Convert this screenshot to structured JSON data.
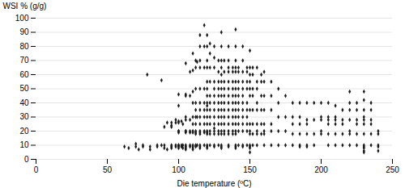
{
  "chart_data": {
    "type": "scatter",
    "xlabel": "Die temperature (ºC)",
    "ylabel": "WSI % (g/g)",
    "xlim": [
      0,
      250
    ],
    "ylim": [
      0,
      100
    ],
    "xticks": [
      0,
      50,
      100,
      150,
      200,
      250
    ],
    "yticks": [
      0,
      10,
      20,
      30,
      40,
      50,
      60,
      70,
      80,
      90,
      100
    ],
    "marker": "diamond",
    "color": "#1a1a1a",
    "grid": "y",
    "x": [
      62,
      65,
      70,
      70,
      72,
      75,
      75,
      78,
      80,
      80,
      85,
      85,
      88,
      88,
      90,
      90,
      90,
      92,
      92,
      95,
      95,
      95,
      95,
      95,
      95,
      98,
      98,
      98,
      98,
      100,
      100,
      100,
      100,
      100,
      100,
      100,
      100,
      100,
      100,
      100,
      102,
      102,
      102,
      103,
      103,
      103,
      105,
      105,
      105,
      105,
      105,
      105,
      105,
      105,
      105,
      105,
      105,
      105,
      108,
      108,
      108,
      108,
      108,
      108,
      108,
      110,
      110,
      110,
      110,
      110,
      110,
      110,
      110,
      110,
      110,
      110,
      110,
      112,
      112,
      112,
      112,
      112,
      112,
      112,
      112,
      112,
      112,
      112,
      112,
      113,
      113,
      113,
      115,
      115,
      115,
      115,
      115,
      115,
      115,
      115,
      115,
      115,
      115,
      115,
      115,
      115,
      115,
      118,
      118,
      118,
      118,
      118,
      118,
      118,
      118,
      118,
      118,
      118,
      120,
      120,
      120,
      120,
      120,
      120,
      120,
      120,
      120,
      120,
      120,
      120,
      120,
      120,
      120,
      120,
      120,
      120,
      122,
      122,
      122,
      122,
      122,
      122,
      122,
      122,
      122,
      122,
      122,
      122,
      125,
      125,
      125,
      125,
      125,
      125,
      125,
      125,
      125,
      125,
      125,
      125,
      125,
      125,
      125,
      128,
      128,
      128,
      128,
      128,
      128,
      128,
      128,
      128,
      128,
      128,
      128,
      130,
      130,
      130,
      130,
      130,
      130,
      130,
      130,
      130,
      130,
      130,
      130,
      130,
      130,
      130,
      130,
      130,
      132,
      132,
      132,
      132,
      132,
      132,
      132,
      132,
      132,
      132,
      132,
      135,
      135,
      135,
      135,
      135,
      135,
      135,
      135,
      135,
      135,
      135,
      135,
      135,
      135,
      135,
      138,
      138,
      138,
      138,
      138,
      138,
      138,
      138,
      138,
      138,
      138,
      140,
      140,
      140,
      140,
      140,
      140,
      140,
      140,
      140,
      140,
      140,
      140,
      140,
      140,
      140,
      140,
      140,
      142,
      142,
      142,
      142,
      142,
      142,
      142,
      142,
      142,
      142,
      142,
      145,
      145,
      145,
      145,
      145,
      145,
      145,
      145,
      145,
      145,
      145,
      145,
      145,
      148,
      148,
      148,
      148,
      148,
      148,
      148,
      148,
      148,
      148,
      150,
      150,
      150,
      150,
      150,
      150,
      150,
      150,
      150,
      150,
      150,
      150,
      150,
      150,
      152,
      152,
      152,
      152,
      152,
      152,
      152,
      152,
      155,
      155,
      155,
      155,
      155,
      155,
      155,
      155,
      155,
      158,
      158,
      158,
      158,
      158,
      158,
      160,
      160,
      160,
      160,
      160,
      160,
      160,
      160,
      165,
      165,
      165,
      165,
      165,
      165,
      170,
      170,
      170,
      170,
      170,
      175,
      175,
      175,
      175,
      180,
      180,
      180,
      180,
      180,
      185,
      185,
      185,
      185,
      185,
      185,
      190,
      190,
      190,
      190,
      190,
      190,
      195,
      195,
      195,
      195,
      200,
      200,
      200,
      200,
      200,
      205,
      205,
      205,
      205,
      205,
      205,
      210,
      210,
      210,
      210,
      210,
      210,
      215,
      215,
      215,
      215,
      215,
      220,
      220,
      220,
      220,
      220,
      220,
      220,
      225,
      225,
      225,
      225,
      225,
      225,
      230,
      230,
      230,
      230,
      230,
      230,
      230,
      230,
      230,
      230,
      230,
      230,
      235,
      235,
      235,
      235,
      235,
      235,
      240,
      240,
      240,
      240,
      240
    ],
    "y": [
      9,
      8,
      11,
      9,
      7,
      10,
      9,
      60,
      9,
      7,
      10,
      9,
      56,
      10,
      8,
      23,
      10,
      26,
      7,
      24,
      26,
      9,
      8,
      23,
      10,
      28,
      26,
      10,
      9,
      27,
      26,
      20,
      19,
      10,
      9,
      8,
      46,
      20,
      10,
      38,
      27,
      10,
      9,
      25,
      10,
      8,
      68,
      45,
      30,
      28,
      20,
      19,
      10,
      9,
      8,
      7,
      46,
      20,
      62,
      45,
      28,
      20,
      19,
      10,
      9,
      75,
      63,
      48,
      40,
      30,
      25,
      20,
      19,
      10,
      9,
      8,
      7,
      70,
      65,
      50,
      40,
      35,
      30,
      25,
      20,
      19,
      18,
      10,
      9,
      69,
      30,
      10,
      88,
      80,
      70,
      65,
      50,
      40,
      35,
      30,
      25,
      20,
      19,
      18,
      10,
      9,
      8,
      95,
      80,
      65,
      50,
      40,
      35,
      30,
      25,
      20,
      19,
      10,
      88,
      80,
      70,
      65,
      55,
      50,
      45,
      40,
      38,
      35,
      30,
      25,
      20,
      19,
      18,
      10,
      9,
      8,
      82,
      75,
      65,
      55,
      45,
      40,
      35,
      30,
      25,
      20,
      18,
      10,
      80,
      72,
      65,
      55,
      50,
      45,
      40,
      35,
      30,
      25,
      22,
      20,
      18,
      10,
      9,
      70,
      62,
      55,
      50,
      45,
      40,
      35,
      30,
      25,
      20,
      18,
      10,
      90,
      80,
      70,
      65,
      60,
      55,
      50,
      45,
      40,
      35,
      30,
      25,
      20,
      18,
      10,
      9,
      8,
      70,
      62,
      55,
      50,
      45,
      40,
      35,
      30,
      25,
      20,
      18,
      80,
      70,
      65,
      62,
      55,
      50,
      45,
      40,
      35,
      30,
      25,
      20,
      18,
      10,
      9,
      65,
      62,
      55,
      50,
      45,
      40,
      35,
      30,
      25,
      20,
      18,
      92,
      80,
      70,
      65,
      62,
      55,
      50,
      45,
      40,
      35,
      30,
      25,
      20,
      18,
      10,
      9,
      8,
      65,
      62,
      55,
      50,
      45,
      40,
      35,
      30,
      25,
      20,
      10,
      80,
      70,
      62,
      55,
      50,
      45,
      40,
      35,
      30,
      25,
      20,
      10,
      9,
      65,
      62,
      55,
      50,
      40,
      35,
      30,
      25,
      20,
      10,
      77,
      65,
      60,
      55,
      50,
      45,
      35,
      25,
      20,
      18,
      10,
      9,
      8,
      5,
      65,
      60,
      50,
      45,
      35,
      25,
      18,
      10,
      65,
      55,
      50,
      40,
      35,
      25,
      20,
      18,
      10,
      60,
      55,
      45,
      35,
      25,
      18,
      62,
      55,
      45,
      35,
      25,
      20,
      18,
      10,
      55,
      45,
      35,
      25,
      20,
      10,
      50,
      40,
      30,
      20,
      10,
      45,
      30,
      20,
      10,
      40,
      30,
      25,
      18,
      10,
      40,
      30,
      25,
      18,
      10,
      9,
      40,
      28,
      25,
      18,
      10,
      9,
      40,
      28,
      18,
      10,
      40,
      30,
      28,
      20,
      18,
      40,
      30,
      28,
      25,
      18,
      10,
      38,
      30,
      28,
      25,
      18,
      10,
      35,
      28,
      25,
      18,
      10,
      48,
      40,
      35,
      28,
      20,
      18,
      10,
      40,
      35,
      28,
      25,
      18,
      10,
      48,
      42,
      35,
      30,
      28,
      25,
      18,
      10,
      9,
      8,
      5,
      6,
      40,
      35,
      28,
      25,
      18,
      10,
      20,
      18,
      10,
      9,
      6
    ]
  }
}
